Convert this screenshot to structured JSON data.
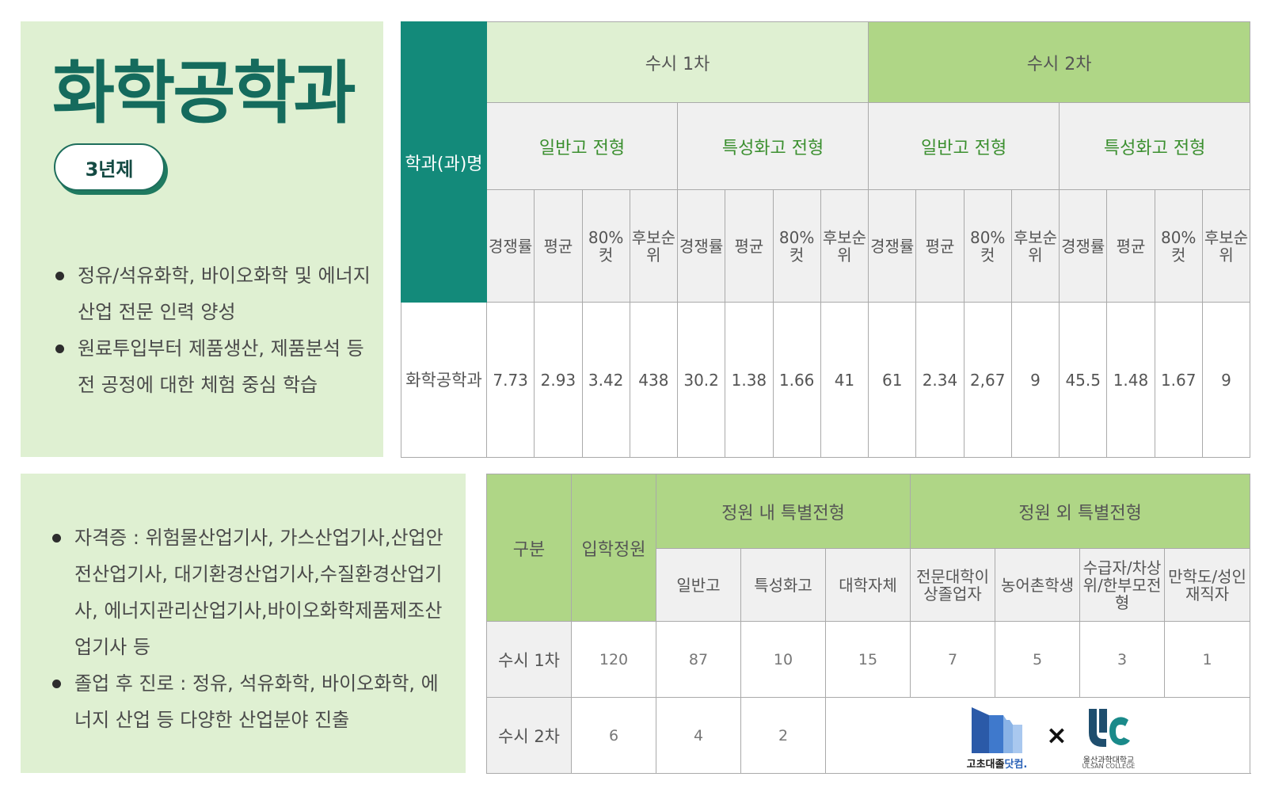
{
  "dept": {
    "title": "화학공학과",
    "badge": "3년제"
  },
  "bullets_top": [
    "정유/석유화학, 바이오화학 및 에너지 산업 전문 인력 양성",
    "원료투입부터 제품생산, 제품분석 등 전 공정에 대한 체험 중심 학습"
  ],
  "bullets_bottom": [
    "자격증 : 위험물산업기사, 가스산업기사,산업안전산업기사, 대기환경산업기사,수질환경산업기사, 에너지관리산업기사,바이오화학제품제조산업기사 등",
    "졸업 후 진로 : 정유, 석유화학, 바이오화학, 에너지 산업 등 다양한 산업분야 진출"
  ],
  "results_table": {
    "dept_header": "학과(과)명",
    "rounds": [
      "수시 1차",
      "수시 2차"
    ],
    "types": [
      "일반고 전형",
      "특성화고 전형",
      "일반고 전형",
      "특성화고 전형"
    ],
    "metrics": [
      "경쟁률",
      "평균",
      "80%컷",
      "후보순위"
    ],
    "dept_name": "화학공학과",
    "values": [
      "7.73",
      "2.93",
      "3.42",
      "438",
      "30.2",
      "1.38",
      "1.66",
      "41",
      "61",
      "2.34",
      "2,67",
      "9",
      "45.5",
      "1.48",
      "1.67",
      "9"
    ]
  },
  "quota_table": {
    "col_division": "구분",
    "col_capacity": "입학정원",
    "group_in": "정원 내 특별전형",
    "group_out": "정원 외 특별전형",
    "sub_in": [
      "일반고",
      "특성화고",
      "대학자체"
    ],
    "sub_out": [
      "전문대학이상졸업자",
      "농어촌학생",
      "수급자/차상위/한부모전형",
      "만학도/성인재직자"
    ],
    "rows": [
      {
        "label": "수시 1차",
        "values": [
          "120",
          "87",
          "10",
          "15",
          "7",
          "5",
          "3",
          "1"
        ]
      },
      {
        "label": "수시 2차",
        "values": [
          "6",
          "4",
          "2"
        ]
      }
    ]
  },
  "logos": {
    "left_caption_main": "고초대졸",
    "left_caption_accent": "닷컴.",
    "times": "×",
    "right_caption1": "울산과학대학교",
    "right_caption2": "ULSAN COLLEGE"
  },
  "colors": {
    "teal": "#138a7a",
    "light_green": "#dff0d2",
    "mid_green": "#afd686",
    "title_green": "#156b5d",
    "type_text_green": "#3b8f2f"
  }
}
